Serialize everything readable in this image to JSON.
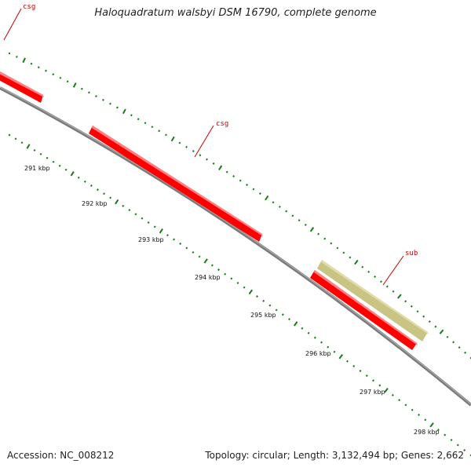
{
  "title": "Haloquadratum walsbyi DSM 16790, complete genome",
  "footer": {
    "accession": "Accession: NC_008212",
    "summary": "Topology: circular; Length: 3,132,494 bp; Genes: 2,662"
  },
  "scale": {
    "tick_labels": [
      "291 kbp",
      "292 kbp",
      "293 kbp",
      "294 kbp",
      "295 kbp",
      "296 kbp",
      "297 kbp",
      "298 kbp"
    ]
  },
  "features": [
    {
      "label": "csg",
      "color": "#ff0000"
    },
    {
      "label": "csg",
      "color": "#ff0000"
    },
    {
      "label": "sub",
      "color": "#c9c384"
    }
  ],
  "colors": {
    "backbone": "#808080",
    "ticks": "#1a7a1a",
    "gene": "#ff0000",
    "other_feature": "#c9c384",
    "label_line": "#cc0000"
  }
}
